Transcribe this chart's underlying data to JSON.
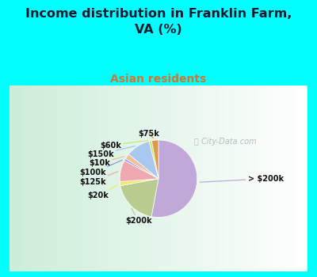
{
  "title": "Income distribution in Franklin Farm,\nVA (%)",
  "subtitle": "Asian residents",
  "title_color": "#1a1a2e",
  "subtitle_color": "#cc7733",
  "bg_cyan": "#00ffff",
  "bg_chart_left": "#c8e8d0",
  "bg_chart_right": "#e8f0f8",
  "labels": [
    "> $200k",
    "$200k",
    "$20k",
    "$125k",
    "$100k",
    "$10k",
    "$150k",
    "$60k",
    "$75k"
  ],
  "values": [
    47,
    17,
    1.5,
    8,
    0.8,
    2,
    9,
    1,
    2.5
  ],
  "colors": [
    "#c0a8d8",
    "#b8cc90",
    "#f0e870",
    "#f0a8b0",
    "#9898e0",
    "#f0c098",
    "#a8c8f0",
    "#c8e870",
    "#e09850"
  ],
  "line_colors": [
    "#c0a8d8",
    "#b8cc90",
    "#f0e870",
    "#f0a8b0",
    "#9898e0",
    "#f0c098",
    "#a8c8f0",
    "#c8e870",
    "#e09850"
  ],
  "startangle": 90,
  "watermark": "City-Data.com"
}
